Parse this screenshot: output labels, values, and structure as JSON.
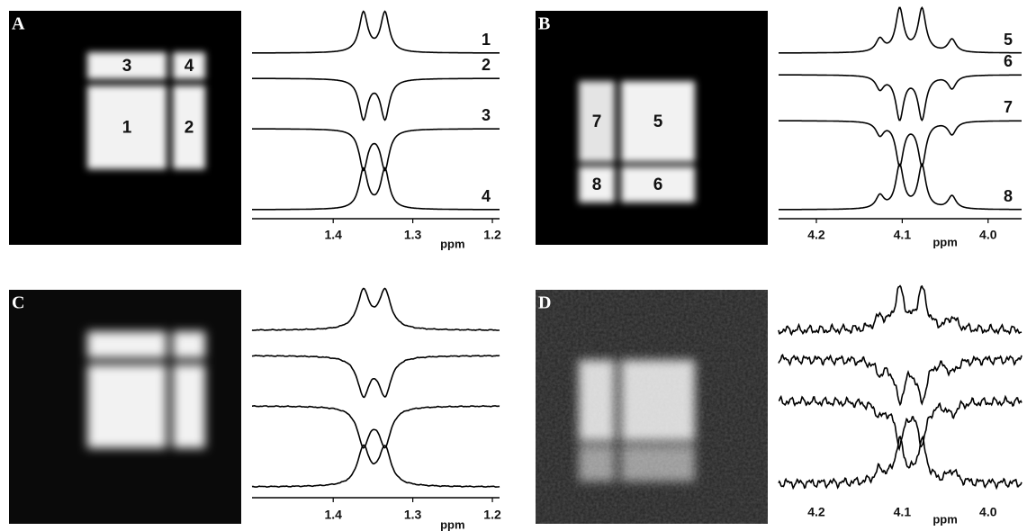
{
  "panels": [
    {
      "label": "A",
      "regions": [
        {
          "label": "3"
        },
        {
          "label": "4"
        },
        {
          "label": "1"
        },
        {
          "label": "2"
        }
      ],
      "spectrum": {
        "xlim": [
          1.502,
          1.191
        ],
        "xticks": [
          1.4,
          1.3,
          1.2
        ],
        "unit": "ppm",
        "peaks": {
          "ppm": [
            1.362,
            1.335
          ],
          "heights": [
            1,
            1
          ]
        },
        "traces": [
          {
            "label": "1",
            "sign": 1
          },
          {
            "label": "2",
            "sign": -1
          },
          {
            "label": "3",
            "sign": -1
          },
          {
            "label": "4",
            "sign": 1
          }
        ]
      }
    },
    {
      "label": "B",
      "regions": [
        {
          "label": "7"
        },
        {
          "label": "5"
        },
        {
          "label": "8"
        },
        {
          "label": "6"
        }
      ],
      "spectrum": {
        "xlim": [
          4.244,
          3.961
        ],
        "xticks": [
          4.2,
          4.1,
          {
            "value": 4,
            "label": "4.0"
          }
        ],
        "unit": "ppm",
        "peaks": {
          "ppm": [
            4.126,
            4.103,
            4.077,
            4.042
          ],
          "heights": [
            0.3,
            1,
            1,
            0.3
          ]
        },
        "traces": [
          {
            "label": "5",
            "sign": 1
          },
          {
            "label": "6",
            "sign": -1
          },
          {
            "label": "7",
            "sign": -1
          },
          {
            "label": "8",
            "sign": 1
          }
        ]
      }
    },
    {
      "label": "C",
      "spectrum": {
        "xlim": [
          1.502,
          1.191
        ],
        "xticks": [
          1.4,
          1.3,
          1.2
        ],
        "unit": "ppm",
        "peaks": {
          "ppm": [
            1.362,
            1.335
          ],
          "heights": [
            1,
            1
          ]
        },
        "traces": [
          {
            "sign": 1
          },
          {
            "sign": -1
          },
          {
            "sign": -1
          },
          {
            "sign": 1
          }
        ]
      }
    },
    {
      "label": "D",
      "spectrum": {
        "xlim": [
          4.244,
          3.961
        ],
        "xticks": [
          4.2,
          4.1,
          {
            "value": 4,
            "label": "4.0"
          }
        ],
        "unit": "ppm",
        "peaks": {
          "ppm": [
            4.126,
            4.103,
            4.077,
            4.042
          ],
          "heights": [
            0.3,
            1,
            1,
            0.3
          ]
        },
        "traces": [
          {
            "sign": 1
          },
          {
            "sign": -1
          },
          {
            "sign": -1
          },
          {
            "sign": 1
          }
        ]
      }
    }
  ]
}
